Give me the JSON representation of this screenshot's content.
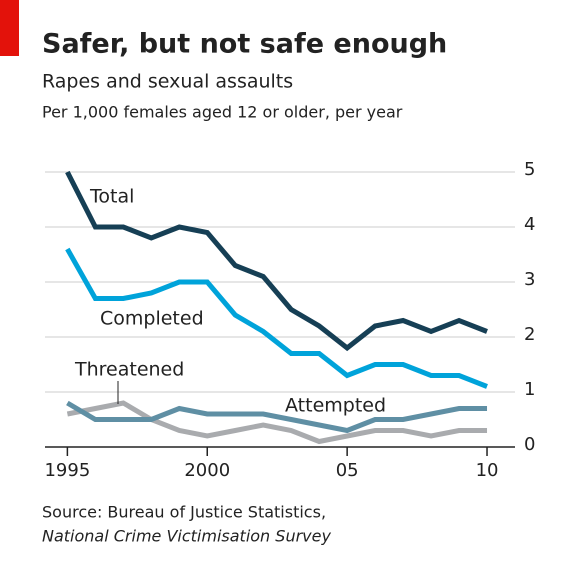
{
  "chart_data": {
    "type": "line",
    "title": "Safer, but not safe enough",
    "subtitle": "Rapes and sexual assaults",
    "y_label": "Per 1,000 females aged 12 or older, per year",
    "source": [
      "Source: Bureau of Justice Statistics,",
      "National Crime Victimisation Survey"
    ],
    "x": [
      1995,
      1996,
      1997,
      1998,
      1999,
      2000,
      2001,
      2002,
      2003,
      2004,
      2005,
      2006,
      2007,
      2008,
      2009,
      2010
    ],
    "series": [
      {
        "name": "Total",
        "color": "#163f55",
        "values": [
          5.0,
          4.0,
          4.0,
          3.8,
          4.0,
          3.9,
          3.3,
          3.1,
          2.5,
          2.2,
          1.8,
          2.2,
          2.3,
          2.1,
          2.3,
          2.1
        ]
      },
      {
        "name": "Completed",
        "color": "#00a3da",
        "values": [
          3.6,
          2.7,
          2.7,
          2.8,
          3.0,
          3.0,
          2.4,
          2.1,
          1.7,
          1.7,
          1.3,
          1.5,
          1.5,
          1.3,
          1.3,
          1.1
        ]
      },
      {
        "name": "Threatened",
        "color": "#a9abae",
        "values": [
          0.6,
          0.7,
          0.8,
          0.5,
          0.3,
          0.2,
          0.3,
          0.4,
          0.3,
          0.1,
          0.2,
          0.3,
          0.3,
          0.2,
          0.3,
          0.3
        ]
      },
      {
        "name": "Attempted",
        "color": "#5f8fa4",
        "values": [
          0.8,
          0.5,
          0.5,
          0.5,
          0.7,
          0.6,
          0.6,
          0.6,
          0.5,
          0.4,
          0.3,
          0.5,
          0.5,
          0.6,
          0.7,
          0.7
        ]
      }
    ],
    "xlim": [
      1994.2,
      2011
    ],
    "xticks": [
      1995,
      2000,
      {
        "value": 2005,
        "label": "05"
      },
      {
        "value": 2010,
        "label": "10"
      }
    ],
    "ylim": [
      0,
      5
    ],
    "yticks": [
      0,
      1,
      2,
      3,
      4,
      5
    ],
    "grid": true
  }
}
